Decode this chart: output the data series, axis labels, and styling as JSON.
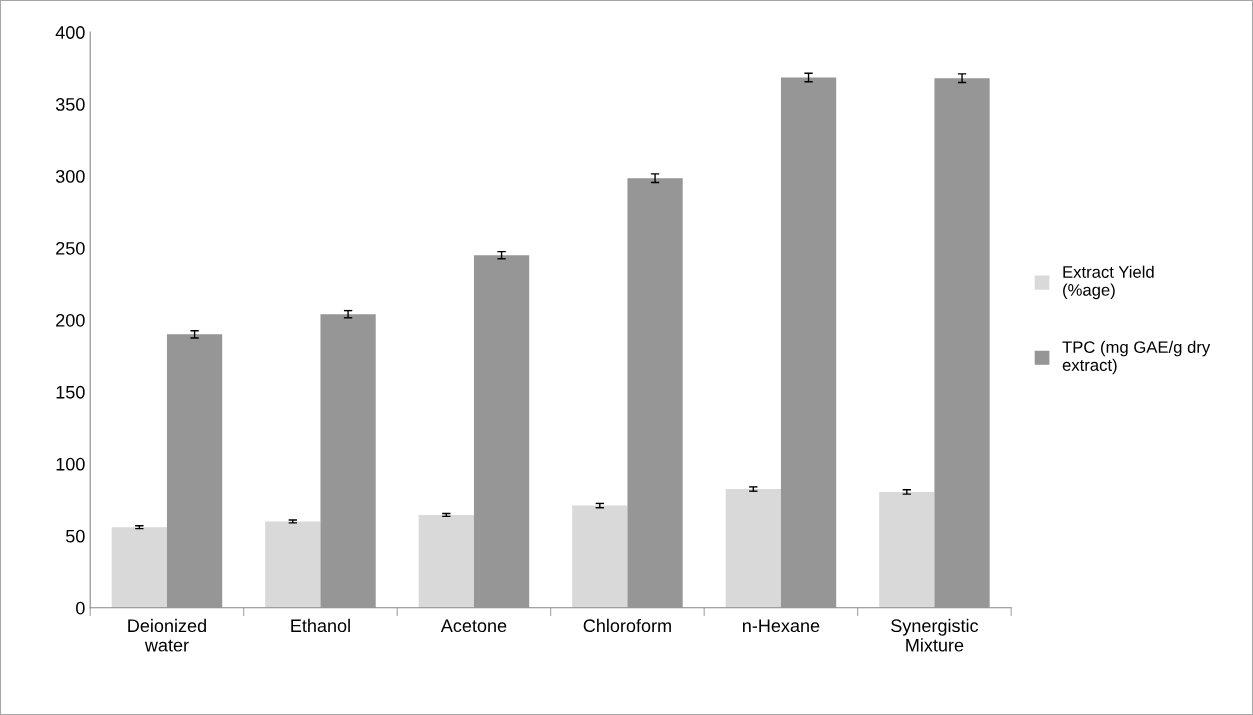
{
  "chart_data": {
    "type": "bar",
    "categories": [
      "Deionized water",
      "Ethanol",
      "Acetone",
      "Chloroform",
      "n-Hexane",
      "Synergistic Mixture"
    ],
    "series": [
      {
        "name": "Extract Yield (%age)",
        "color": "#d9d9d9",
        "values": [
          56,
          60,
          64.5,
          71,
          82.5,
          80.5
        ],
        "errors": [
          1,
          1,
          1,
          1.5,
          1.5,
          1.5
        ]
      },
      {
        "name": "TPC (mg GAE/g dry extract)",
        "color": "#969696",
        "values": [
          190,
          204,
          245,
          298.5,
          368.5,
          368
        ],
        "errors": [
          2.5,
          2.5,
          2.5,
          3,
          3,
          3
        ]
      }
    ],
    "ylim": [
      0,
      400
    ],
    "yticks": [
      0,
      50,
      100,
      150,
      200,
      250,
      300,
      350,
      400
    ],
    "grid": false,
    "legend": "right"
  }
}
